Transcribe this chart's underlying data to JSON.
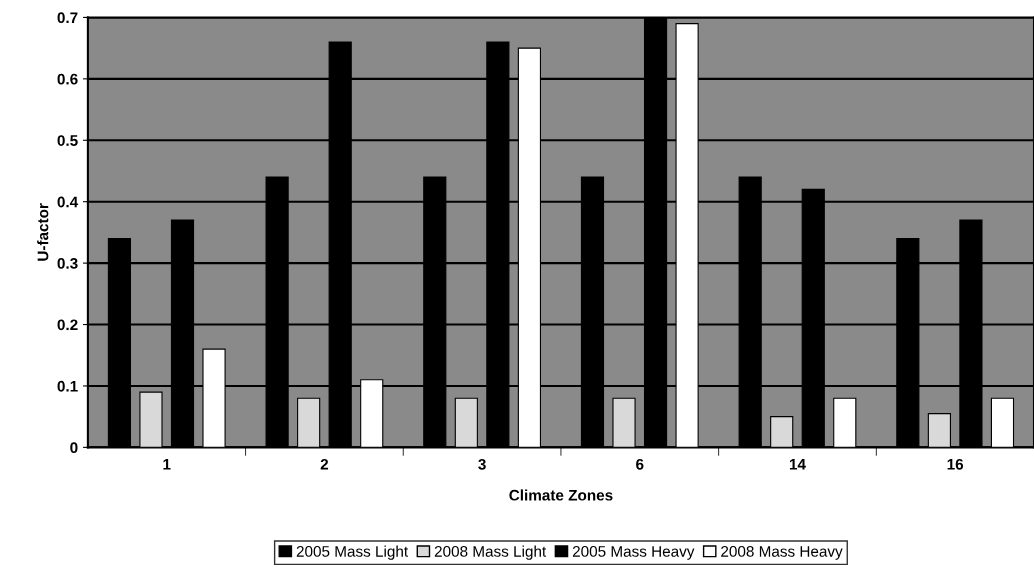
{
  "chart_data": {
    "type": "bar",
    "xlabel": "Climate Zones",
    "ylabel": "U-factor",
    "categories": [
      "1",
      "2",
      "3",
      "6",
      "14",
      "16"
    ],
    "series": [
      {
        "name": "2005 Mass Light",
        "color": "#000000",
        "values": [
          0.34,
          0.44,
          0.44,
          0.44,
          0.44,
          0.34
        ]
      },
      {
        "name": "2008 Mass Light",
        "color": "#d9d9d9",
        "values": [
          0.09,
          0.08,
          0.08,
          0.08,
          0.05,
          0.055
        ]
      },
      {
        "name": "2005 Mass Heavy",
        "color": "#000000",
        "values": [
          0.37,
          0.66,
          0.66,
          0.7,
          0.42,
          0.37
        ]
      },
      {
        "name": "2008 Mass Heavy",
        "color": "#ffffff",
        "values": [
          0.16,
          0.11,
          0.65,
          0.69,
          0.08,
          0.08
        ]
      }
    ],
    "ylim": [
      0,
      0.7
    ],
    "yticks": [
      {
        "value": 0,
        "label": "0"
      },
      0.1,
      0.2,
      0.3,
      0.4,
      0.5,
      0.6,
      0.7
    ],
    "grid": "y",
    "legend": "bottom"
  }
}
